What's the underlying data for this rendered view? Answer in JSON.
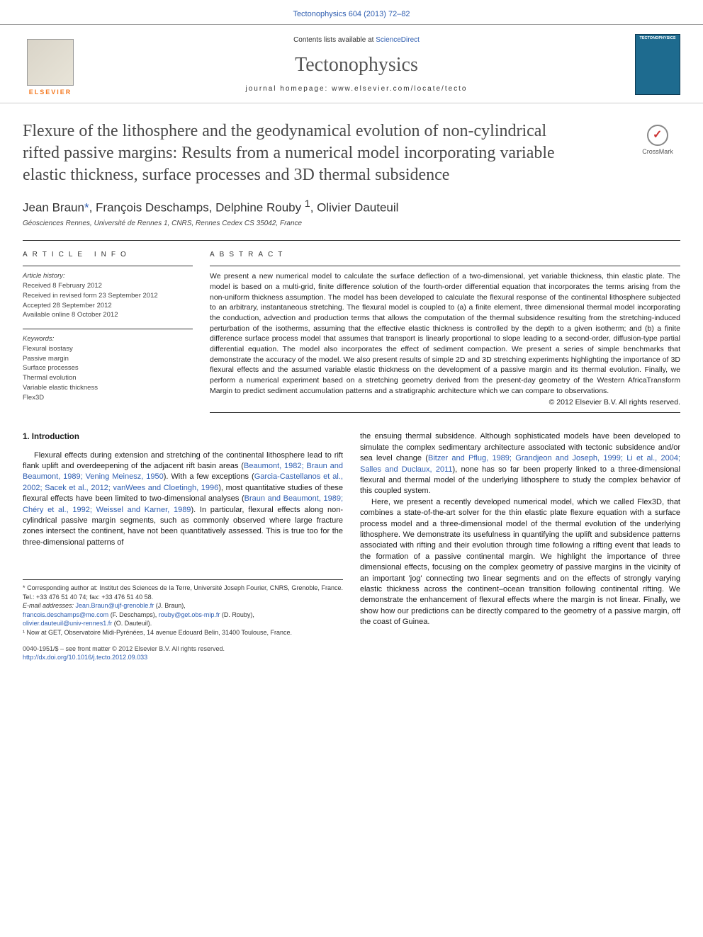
{
  "header": {
    "citation_link": "Tectonophysics 604 (2013) 72–82",
    "contents_line_prefix": "Contents lists available at ",
    "contents_link": "ScienceDirect",
    "journal_name": "Tectonophysics",
    "homepage_prefix": "journal homepage: ",
    "homepage_url": "www.elsevier.com/locate/tecto",
    "elsevier_label": "ELSEVIER",
    "cover_journal_label": "TECTONOPHYSICS",
    "crossmark_label": "CrossMark"
  },
  "title": "Flexure of the lithosphere and the geodynamical evolution of non-cylindrical rifted passive margins: Results from a numerical model incorporating variable elastic thickness, surface processes and 3D thermal subsidence",
  "authors": {
    "line": "Jean Braun *, François Deschamps, Delphine Rouby ¹, Olivier Dauteuil",
    "a1": "Jean Braun",
    "corr": "*",
    "a2": ", François Deschamps, Delphine Rouby ",
    "sup1": "1",
    "a3": ", Olivier Dauteuil"
  },
  "affiliation": "Géosciences Rennes, Université de Rennes 1, CNRS, Rennes Cedex CS 35042, France",
  "article_info": {
    "label": "ARTICLE INFO",
    "history_hdr": "Article history:",
    "received": "Received 8 February 2012",
    "received_rev": "Received in revised form 23 September 2012",
    "accepted": "Accepted 28 September 2012",
    "online": "Available online 8 October 2012",
    "keywords_hdr": "Keywords:",
    "keywords": [
      "Flexural isostasy",
      "Passive margin",
      "Surface processes",
      "Thermal evolution",
      "Variable elastic thickness",
      "Flex3D"
    ]
  },
  "abstract": {
    "label": "ABSTRACT",
    "text": "We present a new numerical model to calculate the surface deflection of a two-dimensional, yet variable thickness, thin elastic plate. The model is based on a multi-grid, finite difference solution of the fourth-order differential equation that incorporates the terms arising from the non-uniform thickness assumption. The model has been developed to calculate the flexural response of the continental lithosphere subjected to an arbitrary, instantaneous stretching. The flexural model is coupled to (a) a finite element, three dimensional thermal model incorporating the conduction, advection and production terms that allows the computation of the thermal subsidence resulting from the stretching-induced perturbation of the isotherms, assuming that the effective elastic thickness is controlled by the depth to a given isotherm; and (b) a finite difference surface process model that assumes that transport is linearly proportional to slope leading to a second-order, diffusion-type partial differential equation. The model also incorporates the effect of sediment compaction. We present a series of simple benchmarks that demonstrate the accuracy of the model. We also present results of simple 2D and 3D stretching experiments highlighting the importance of 3D flexural effects and the assumed variable elastic thickness on the development of a passive margin and its thermal evolution. Finally, we perform a numerical experiment based on a stretching geometry derived from the present-day geometry of the Western AfricaTransform Margin to predict sediment accumulation patterns and a stratigraphic architecture which we can compare to observations.",
    "copyright": "© 2012 Elsevier B.V. All rights reserved."
  },
  "body": {
    "intro_hdr": "1. Introduction",
    "col1_p1_a": "Flexural effects during extension and stretching of the continental lithosphere lead to rift flank uplift and overdeepening of the adjacent rift basin areas (",
    "col1_ref1": "Beaumont, 1982; Braun and Beaumont, 1989; Vening Meinesz, 1950",
    "col1_p1_b": "). With a few exceptions (",
    "col1_ref2": "Garcia-Castellanos et al., 2002; Sacek et al., 2012; vanWees and Cloetingh, 1996",
    "col1_p1_c": "), most quantitative studies of these flexural effects have been limited to two-dimensional analyses (",
    "col1_ref3": "Braun and Beaumont, 1989; Chéry et al., 1992; Weissel and Karner, 1989",
    "col1_p1_d": "). In particular, flexural effects along non-cylindrical passive margin segments, such as commonly observed where large fracture zones intersect the continent, have not been quantitatively assessed. This is true too for the three-dimensional patterns of",
    "col2_p1_a": "the ensuing thermal subsidence. Although sophisticated models have been developed to simulate the complex sedimentary architecture associated with tectonic subsidence and/or sea level change (",
    "col2_ref1": "Bitzer and Pflug, 1989; Grandjeon and Joseph, 1999; Li et al., 2004; Salles and Duclaux, 2011",
    "col2_p1_b": "), none has so far been properly linked to a three-dimensional flexural and thermal model of the underlying lithosphere to study the complex behavior of this coupled system.",
    "col2_p2": "Here, we present a recently developed numerical model, which we called Flex3D, that combines a state-of-the-art solver for the thin elastic plate flexure equation with a surface process model and a three-dimensional model of the thermal evolution of the underlying lithosphere. We demonstrate its usefulness in quantifying the uplift and subsidence patterns associated with rifting and their evolution through time following a rifting event that leads to the formation of a passive continental margin. We highlight the importance of three dimensional effects, focusing on the complex geometry of passive margins in the vicinity of an important 'jog' connecting two linear segments and on the effects of strongly varying elastic thickness across the continent–ocean transition following continental rifting. We demonstrate the enhancement of flexural effects where the margin is not linear. Finally, we show how our predictions can be directly compared to the geometry of a passive margin, off the coast of Guinea."
  },
  "footnotes": {
    "corr_a": "* Corresponding author at: Institut des Sciences de la Terre, Université Joseph Fourier, CNRS, Grenoble, France. Tel.: +33 476 51 40 74; fax: +33 476 51 40 58.",
    "email_hdr": "E-mail addresses: ",
    "e1": "Jean.Braun@ujf-grenoble.fr",
    "e1_name": " (J. Braun),",
    "e2": "francois.deschamps@me.com",
    "e2_name": " (F. Deschamps), ",
    "e3": "rouby@get.obs-mip.fr",
    "e3_name": " (D. Rouby),",
    "e4": "olivier.dauteuil@univ-rennes1.fr",
    "e4_name": " (O. Dauteuil).",
    "note1": "¹ Now at GET, Observatoire Midi-Pyrénées, 14 avenue Edouard Belin, 31400 Toulouse, France."
  },
  "footer": {
    "issn": "0040-1951/$ – see front matter © 2012 Elsevier B.V. All rights reserved.",
    "doi": "http://dx.doi.org/10.1016/j.tecto.2012.09.033"
  },
  "colors": {
    "link": "#2e5db0",
    "elsevier_orange": "#f47920",
    "cover_bg": "#1e6b8f"
  }
}
